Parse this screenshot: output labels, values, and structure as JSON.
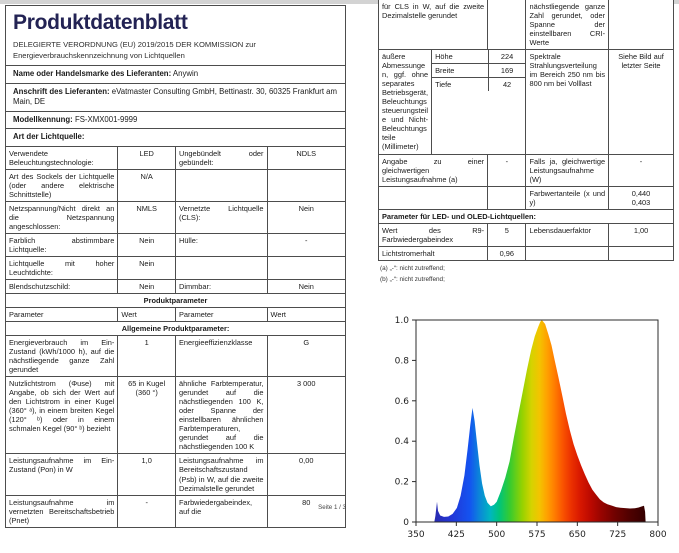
{
  "left_page": {
    "title": "Produktdatenblatt",
    "subtitle_line1": "DELEGIERTE VERORDNUNG (EU) 2019/2015 DER KOMMISSION zur",
    "subtitle_line2": "Energieverbrauchskennzeichnung von Lichtquellen",
    "info_rows": [
      {
        "label": "Name oder Handelsmarke des Lieferanten:",
        "value": "Anywin"
      },
      {
        "label": "Anschrift des Lieferanten:",
        "value": "eVatmaster Consulting GmbH, Bettinastr. 30, 60325 Frankfurt am Main, DE"
      },
      {
        "label": "Modellkennung:",
        "value": "FS-XMX001-9999"
      },
      {
        "label": "Art der Lichtquelle:",
        "value": ""
      }
    ],
    "table_rows": [
      {
        "type": "row",
        "cells": [
          "Verwendete Beleuchtungstechnologie:",
          "LED",
          "Ungebündelt oder gebündelt:",
          "NDLS"
        ]
      },
      {
        "type": "row",
        "cells": [
          "Art des Sockels der Lichtquelle (oder andere elektrische Schnittstelle)",
          "N/A",
          "",
          ""
        ]
      },
      {
        "type": "row",
        "cells": [
          "Netzspannung/Nicht direkt an die Netzspannung angeschlossen:",
          "NMLS",
          "Vernetzte Lichtquelle (CLS):",
          "Nein"
        ]
      },
      {
        "type": "row",
        "cells": [
          "Farblich abstimmbare Lichtquelle:",
          "Nein",
          "Hülle:",
          "-"
        ]
      },
      {
        "type": "row",
        "cells": [
          "Lichtquelle mit hoher Leuchtdichte:",
          "Nein",
          "",
          ""
        ]
      },
      {
        "type": "row",
        "cells": [
          "Blendschutzschild:",
          "Nein",
          "Dimmbar:",
          "Nein"
        ]
      },
      {
        "type": "section",
        "text": "Produktparameter"
      },
      {
        "type": "head",
        "cells": [
          "Parameter",
          "Wert",
          "Parameter",
          "Wert"
        ]
      },
      {
        "type": "section",
        "text": "Allgemeine Produktparameter:"
      },
      {
        "type": "row",
        "cells": [
          "Energieverbrauch im Ein-Zustand (kWh/1000 h), auf die nächstliegende ganze Zahl gerundet",
          "1",
          "Energieeffizienzklasse",
          "G"
        ]
      },
      {
        "type": "row",
        "cells": [
          "Nutzlichtstrom (Φuse) mit Angabe, ob sich der Wert auf den Lichtstrom in einer Kugel (360° ᵃ), in einem breiten Kegel (120° ᵇ) oder in einem schmalen Kegel (90° ᵇ) bezieht",
          "65 in Kugel (360 °)",
          "ähnliche Farbtemperatur, gerundet auf die nächstliegenden 100 K, oder Spanne der einstellbaren ähnlichen Farbtemperaturen, gerundet auf die nächstliegenden 100 K",
          "3 000"
        ]
      },
      {
        "type": "row",
        "cells": [
          "Leistungsaufnahme im Ein-Zustand (Pon) in W",
          "1,0",
          "Leistungsaufnahme im Bereitschaftszustand (Psb) in W, auf die zweite Dezimalstelle gerundet",
          "0,00"
        ]
      },
      {
        "type": "row",
        "cells": [
          "Leistungsaufnahme im vernetzten Bereitschaftsbetrieb (Pnet)",
          "-",
          "Farbwiedergabeindex, auf die",
          "80"
        ]
      }
    ],
    "footer": "Seite 1 / 3"
  },
  "right_page": {
    "table_rows": [
      {
        "type": "row",
        "cut_top": true,
        "cells": [
          "für CLS in W, auf die zweite Dezimalstelle gerundet",
          "",
          "nächstliegende ganze Zahl gerundet, oder Spanne der einstellbaren CRI-Werte",
          ""
        ]
      },
      {
        "type": "dims",
        "label": "äußere Abmessungen, ggf. ohne separates Betriebsgerät, Beleuchtungssteuerungsteile und Nicht-Beleuchtungsteile (Millimeter)",
        "dims": [
          [
            "Höhe",
            "224"
          ],
          [
            "Breite",
            "169"
          ],
          [
            "Tiefe",
            "42"
          ]
        ],
        "cells": [
          "Spektrale Strahlungsverteilung im Bereich 250 nm bis 800 nm bei Volllast",
          "Siehe Bild auf letzter Seite"
        ]
      },
      {
        "type": "row",
        "cells": [
          "Angabe zu einer gleichwertigen Leistungsaufnahme (a)",
          "-",
          "Falls ja, gleichwertige Leistungsaufnahme (W)",
          "-"
        ]
      },
      {
        "type": "row",
        "cells": [
          "",
          "",
          "Farbwertanteile (x und y)",
          "0,440\n0,403"
        ]
      },
      {
        "type": "section",
        "text": "Parameter für LED- und OLED-Lichtquellen:"
      },
      {
        "type": "row",
        "cells": [
          "Wert des R9-Farbwiedergabeindex",
          "5",
          "Lebensdauerfaktor",
          "1,00"
        ]
      },
      {
        "type": "row",
        "cells": [
          "Lichtstromerhalt",
          "0,96",
          "",
          ""
        ]
      }
    ],
    "footnotes": [
      "(a) „-“: nicht zutreffend;",
      "(b) „-“: nicht zutreffend;"
    ]
  },
  "chart_data": {
    "type": "area",
    "title": "",
    "xlabel": "",
    "ylabel": "",
    "xlim": [
      350,
      800
    ],
    "ylim": [
      0,
      1.0
    ],
    "x_ticks": [
      350,
      425,
      500,
      575,
      650,
      725,
      800
    ],
    "y_ticks": [
      0,
      0.2,
      0.4,
      0.6,
      0.8,
      1.0
    ],
    "grid": false,
    "legend": false,
    "frame_color": "#2b2b2b",
    "points": [
      [
        384,
        0
      ],
      [
        386,
        0.03
      ],
      [
        389,
        0.1
      ],
      [
        391,
        0.055
      ],
      [
        395,
        0.032
      ],
      [
        402,
        0.025
      ],
      [
        410,
        0.027
      ],
      [
        418,
        0.04
      ],
      [
        426,
        0.07
      ],
      [
        433,
        0.13
      ],
      [
        440,
        0.23
      ],
      [
        446,
        0.36
      ],
      [
        451,
        0.48
      ],
      [
        455,
        0.565
      ],
      [
        459,
        0.5
      ],
      [
        463,
        0.4
      ],
      [
        468,
        0.28
      ],
      [
        473,
        0.19
      ],
      [
        478,
        0.13
      ],
      [
        483,
        0.095
      ],
      [
        489,
        0.078
      ],
      [
        495,
        0.085
      ],
      [
        500,
        0.1
      ],
      [
        508,
        0.155
      ],
      [
        516,
        0.22
      ],
      [
        524,
        0.3
      ],
      [
        532,
        0.42
      ],
      [
        540,
        0.53
      ],
      [
        548,
        0.64
      ],
      [
        556,
        0.75
      ],
      [
        564,
        0.85
      ],
      [
        571,
        0.92
      ],
      [
        577,
        0.965
      ],
      [
        581,
        0.99
      ],
      [
        584,
        1.0
      ],
      [
        590,
        0.98
      ],
      [
        596,
        0.93
      ],
      [
        602,
        0.875
      ],
      [
        608,
        0.8
      ],
      [
        615,
        0.715
      ],
      [
        622,
        0.625
      ],
      [
        629,
        0.535
      ],
      [
        636,
        0.455
      ],
      [
        643,
        0.385
      ],
      [
        650,
        0.33
      ],
      [
        657,
        0.28
      ],
      [
        664,
        0.235
      ],
      [
        671,
        0.195
      ],
      [
        678,
        0.16
      ],
      [
        685,
        0.135
      ],
      [
        692,
        0.112
      ],
      [
        699,
        0.097
      ],
      [
        706,
        0.088
      ],
      [
        714,
        0.081
      ],
      [
        722,
        0.074
      ],
      [
        730,
        0.071
      ],
      [
        739,
        0.069
      ],
      [
        748,
        0.067
      ],
      [
        757,
        0.068
      ],
      [
        764,
        0.072
      ],
      [
        770,
        0.077
      ],
      [
        774,
        0.08
      ],
      [
        776,
        0.05
      ],
      [
        777,
        0
      ]
    ],
    "gradient": [
      [
        384,
        "#2a2bb0"
      ],
      [
        415,
        "#2236d6"
      ],
      [
        450,
        "#1453f0"
      ],
      [
        468,
        "#0b86d8"
      ],
      [
        488,
        "#00b6c0"
      ],
      [
        505,
        "#00c47a"
      ],
      [
        525,
        "#38cb2e"
      ],
      [
        548,
        "#97d200"
      ],
      [
        565,
        "#d6d300"
      ],
      [
        580,
        "#f4c300"
      ],
      [
        594,
        "#ffa000"
      ],
      [
        608,
        "#ff7c00"
      ],
      [
        622,
        "#fa5600"
      ],
      [
        638,
        "#ec3200"
      ],
      [
        655,
        "#d81800"
      ],
      [
        675,
        "#bb0900"
      ],
      [
        695,
        "#970400"
      ],
      [
        720,
        "#700200"
      ],
      [
        748,
        "#4f0100"
      ],
      [
        777,
        "#330000"
      ]
    ]
  }
}
